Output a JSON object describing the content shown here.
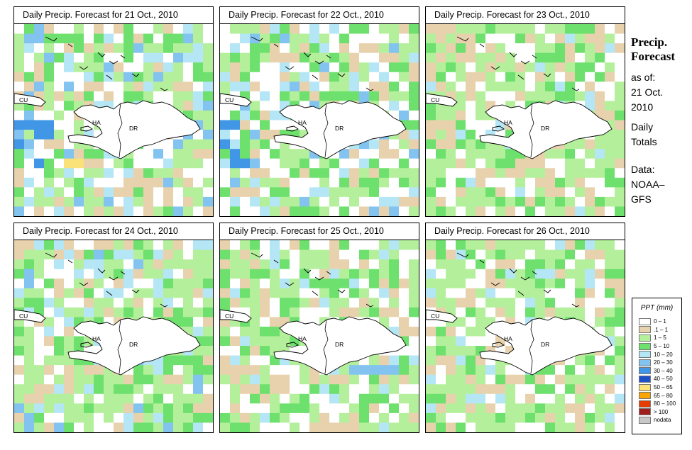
{
  "panels": [
    {
      "title": "Daily Precip. Forecast for  21 Oct., 2010"
    },
    {
      "title": "Daily Precip. Forecast for  22 Oct., 2010"
    },
    {
      "title": "Daily Precip. Forecast for  23 Oct., 2010"
    },
    {
      "title": "Daily Precip. Forecast for  24 Oct., 2010"
    },
    {
      "title": "Daily Precip. Forecast for  25 Oct., 2010"
    },
    {
      "title": "Daily Precip. Forecast for  26 Oct., 2010"
    }
  ],
  "map_labels": {
    "cuba": "CU",
    "haiti": "HA",
    "dominican_republic": "DR"
  },
  "side": {
    "title_line1": "Precip.",
    "title_line2": "Forecast",
    "asof_line1": "as of:",
    "asof_line2": "21 Oct.",
    "asof_line3": "2010",
    "totals_line1": "Daily",
    "totals_line2": "Totals",
    "source_line1": "Data:",
    "source_line2": "NOAA–",
    "source_line3": "GFS"
  },
  "legend": {
    "title": "PPT (mm)",
    "items": [
      {
        "label": "0 – 1",
        "color": "#ffffff"
      },
      {
        "label": ".1 – 1",
        "color": "#e8d2ad"
      },
      {
        "label": "1 – 5",
        "color": "#b4f09b"
      },
      {
        "label": "5 – 10",
        "color": "#6ee06e"
      },
      {
        "label": "10 – 20",
        "color": "#b4e6f5"
      },
      {
        "label": "20 – 30",
        "color": "#82c3f0"
      },
      {
        "label": "30 – 40",
        "color": "#4196e6"
      },
      {
        "label": "40 – 50",
        "color": "#1e50c8"
      },
      {
        "label": "50 – 65",
        "color": "#fae178"
      },
      {
        "label": "65 – 80",
        "color": "#faa500"
      },
      {
        "label": "80 – 100",
        "color": "#e63c00"
      },
      {
        "label": "> 100",
        "color": "#a01e1e"
      },
      {
        "label": "nodata",
        "color": "#c8c8c8"
      }
    ]
  }
}
